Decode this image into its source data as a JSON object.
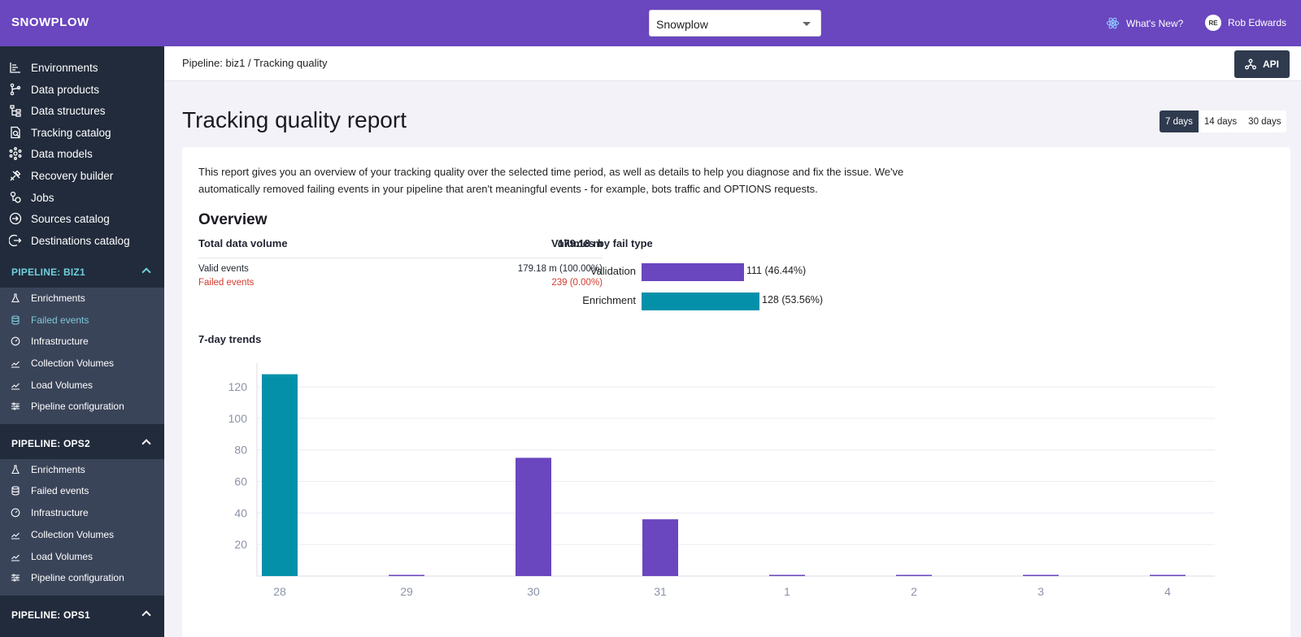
{
  "topbar": {
    "logo": "SNOWPLOW",
    "org_select": "Snowplow",
    "whats_new": "What's New?",
    "user_initials": "RE",
    "user_name": "Rob Edwards"
  },
  "sidebar": {
    "main_items": [
      {
        "label": "Environments",
        "icon": "environments-icon"
      },
      {
        "label": "Data products",
        "icon": "data-products-icon"
      },
      {
        "label": "Data structures",
        "icon": "data-structures-icon"
      },
      {
        "label": "Tracking catalog",
        "icon": "tracking-catalog-icon"
      },
      {
        "label": "Data models",
        "icon": "data-models-icon"
      },
      {
        "label": "Recovery builder",
        "icon": "recovery-builder-icon"
      },
      {
        "label": "Jobs",
        "icon": "jobs-icon"
      },
      {
        "label": "Sources catalog",
        "icon": "sources-catalog-icon"
      },
      {
        "label": "Destinations catalog",
        "icon": "destinations-catalog-icon"
      }
    ],
    "pipelines": [
      {
        "title": "PIPELINE: BIZ1",
        "accent": "#6ed0dd",
        "items": [
          "Enrichments",
          "Failed events",
          "Infrastructure",
          "Collection Volumes",
          "Load Volumes",
          "Pipeline configuration"
        ],
        "active_index": 1
      },
      {
        "title": "PIPELINE: OPS2",
        "accent": "#ffffff",
        "items": [
          "Enrichments",
          "Failed events",
          "Infrastructure",
          "Collection Volumes",
          "Load Volumes",
          "Pipeline configuration"
        ],
        "active_index": -1
      },
      {
        "title": "PIPELINE: OPS1",
        "accent": "#ffffff",
        "items": [],
        "active_index": -1
      }
    ]
  },
  "header": {
    "breadcrumb": "Pipeline: biz1 / Tracking quality",
    "api_label": "API"
  },
  "page": {
    "title": "Tracking quality report",
    "ranges": [
      "7 days",
      "14 days",
      "30 days"
    ],
    "selected_range": "7 days"
  },
  "report": {
    "intro": "This report gives you an overview of your tracking quality over the selected time period, as well as details to help you diagnose and fix the issue. We've automatically removed failing events in your pipeline that aren't meaningful events - for example, bots traffic and OPTIONS requests.",
    "overview_title": "Overview",
    "total_label": "Total data volume",
    "total_value": "179.18 m",
    "valid_label": "Valid events",
    "valid_value": "179.18 m (100.00%)",
    "failed_label": "Failed events",
    "failed_value": "239 (0.00%)",
    "fail_type_title": "Volumes by fail type",
    "fail_types": [
      {
        "label": "Validation",
        "value": 111,
        "text": "111 (46.44%)",
        "color": "#6a46bf"
      },
      {
        "label": "Enrichment",
        "value": 128,
        "text": "128 (53.56%)",
        "color": "#0590aa"
      }
    ],
    "trends_title": "7-day trends"
  },
  "chart_data": {
    "type": "bar",
    "categories": [
      "28",
      "29",
      "30",
      "31",
      "1",
      "2",
      "3",
      "4"
    ],
    "series": [
      {
        "name": "Enrichment",
        "color": "#0590aa",
        "values": [
          128,
          0,
          0,
          0,
          0,
          0,
          0,
          0
        ]
      },
      {
        "name": "Validation",
        "color": "#6a46bf",
        "values": [
          0,
          0.5,
          75,
          36,
          0.5,
          0.5,
          0.5,
          0.5
        ]
      }
    ],
    "yticks": [
      20,
      40,
      60,
      80,
      100,
      120
    ],
    "ylim": [
      0,
      135
    ],
    "grid": true
  }
}
